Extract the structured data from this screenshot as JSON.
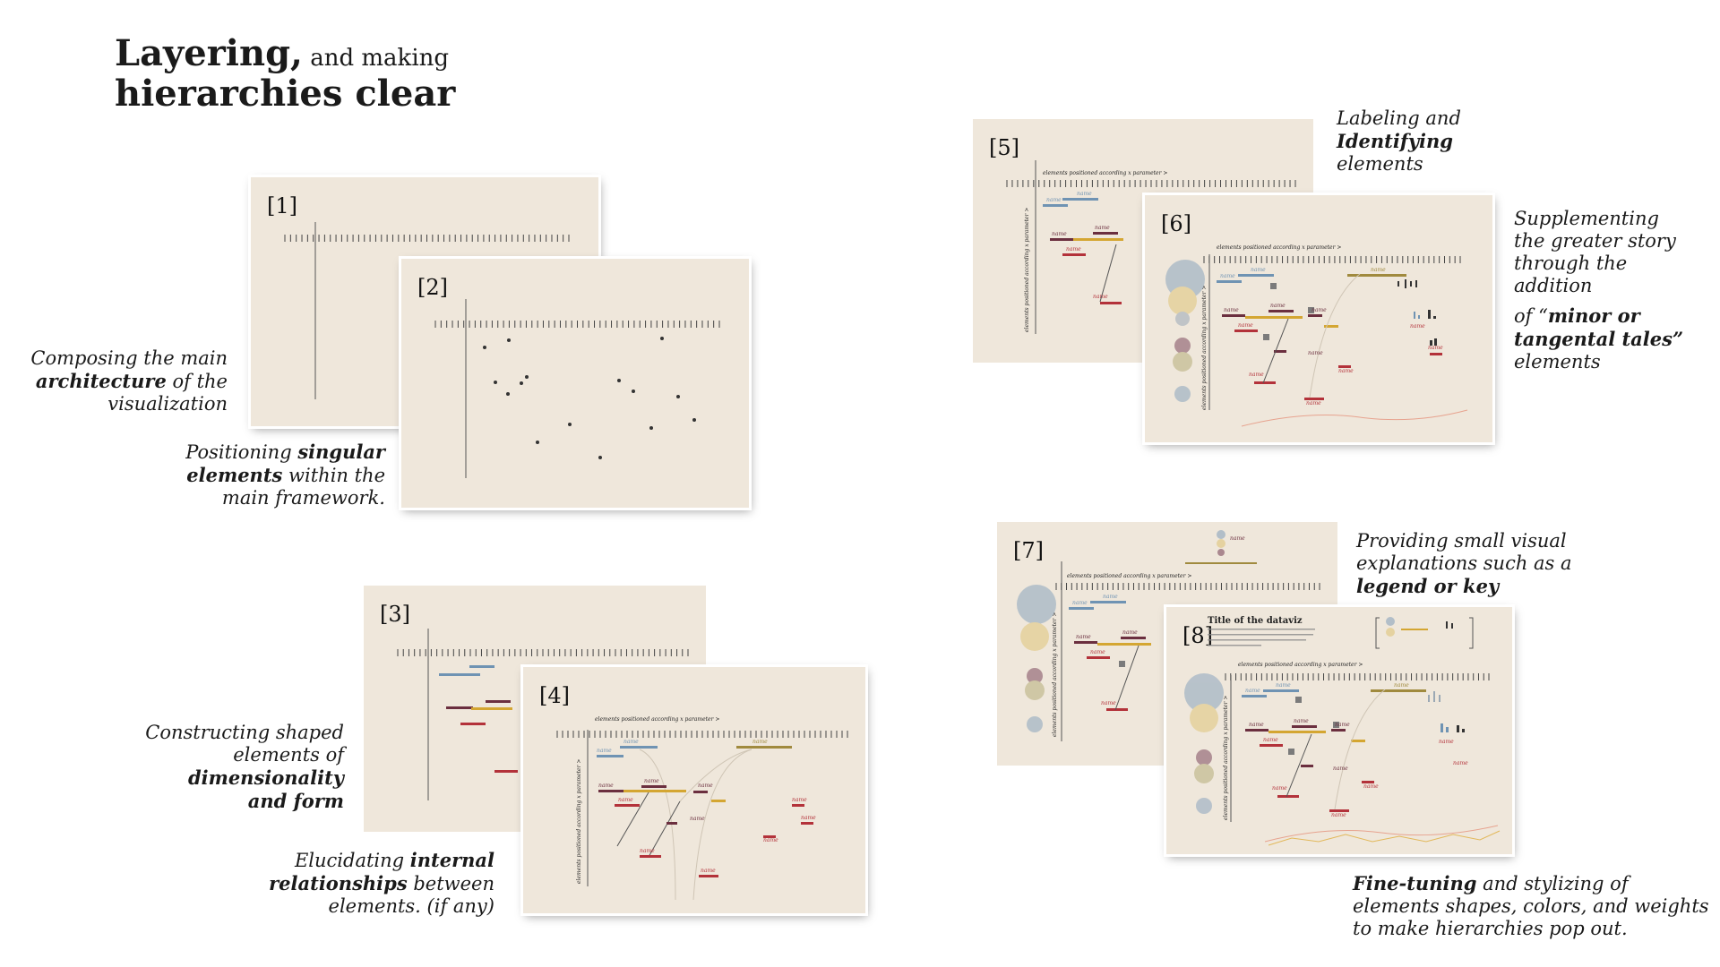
{
  "title": {
    "l1_bold": "Layering,",
    "l1_rest": " and making",
    "l2": "hierarchies clear"
  },
  "panels": [
    {
      "num": "[1]"
    },
    {
      "num": "[2]"
    },
    {
      "num": "[3]"
    },
    {
      "num": "[4]"
    },
    {
      "num": "[5]"
    },
    {
      "num": "[6]"
    },
    {
      "num": "[7]"
    },
    {
      "num": "[8]"
    }
  ],
  "captions": {
    "c1": {
      "a": "Composing the main",
      "b": "architecture",
      "c": " of the",
      "d": "visualization"
    },
    "c2": {
      "a": "Positioning ",
      "b": "singular",
      "c": "elements",
      "d": " within the",
      "e": "main framework."
    },
    "c3": {
      "a": "Constructing shaped",
      "b": "elements of",
      "c": "dimensionality",
      "d": "and form"
    },
    "c4": {
      "a": "Elucidating ",
      "b": "internal",
      "c": "relationships",
      "d": " between",
      "e": "elements. (if any)"
    },
    "c5": {
      "a": "Labeling and",
      "b": "Identifying",
      "c": "elements"
    },
    "c6": {
      "a": "Supplementing",
      "b": "the greater story",
      "c": "through the",
      "d": "addition",
      "e": "of “",
      "f": "minor or",
      "g": "tangental tales”",
      "h": "elements"
    },
    "c7": {
      "a": "Providing small visual",
      "b": "explanations such as a",
      "c": "legend or key"
    },
    "c8": {
      "a": "Fine-tuning",
      "b": " and stylizing of",
      "c": "elements shapes, colors, and weights",
      "d": "to make hierarchies pop out."
    }
  },
  "labels": {
    "x_axis": "elements positioned according x parameter >",
    "y_axis": "elements positioned according x parameter >",
    "name": "name",
    "viz_title": "Title of the dataviz"
  },
  "colors": {
    "bg": "#efe7db",
    "blue": "#6f93b3",
    "red": "#b3323a",
    "maroon": "#6b2f3f",
    "gold": "#d4a632",
    "olive": "#a08a3e",
    "gray": "#7b7b7b"
  }
}
